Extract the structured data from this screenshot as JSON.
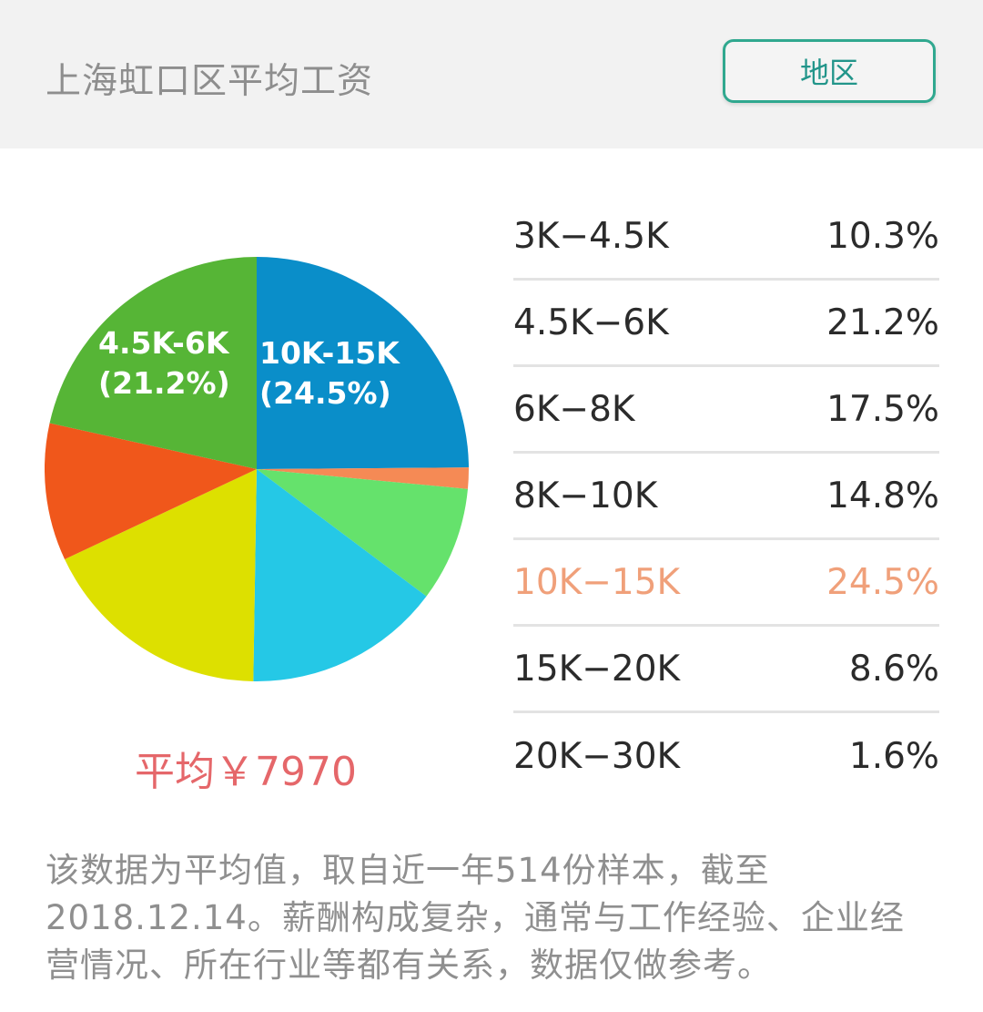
{
  "header": {
    "title": "上海虹口区平均工资",
    "region_button": "地区"
  },
  "pie_labels": [
    {
      "range": "4.5K-6K",
      "pct": "(21.2%)"
    },
    {
      "range": "10K-15K",
      "pct": "(24.5%)"
    }
  ],
  "average": {
    "text": "平均￥7970"
  },
  "legend": [
    {
      "range": "3K−4.5K",
      "pct": "10.3%"
    },
    {
      "range": "4.5K−6K",
      "pct": "21.2%"
    },
    {
      "range": "6K−8K",
      "pct": "17.5%"
    },
    {
      "range": "8K−10K",
      "pct": "14.8%"
    },
    {
      "range": "10K−15K",
      "pct": "24.5%",
      "highlighted": true
    },
    {
      "range": "15K−20K",
      "pct": "8.6%"
    },
    {
      "range": "20K−30K",
      "pct": "1.6%"
    }
  ],
  "note": "该数据为平均值，取自近一年514份样本，截至2018.12.14。薪酬构成复杂，通常与工作经验、企业经营情况、所在行业等都有关系，数据仅做参考。",
  "colors": {
    "highlight": "#f0a07a",
    "average": "#e5676a",
    "button_border": "#30a88f"
  },
  "chart_data": {
    "type": "pie",
    "title": "上海虹口区平均工资",
    "categories": [
      "10K-15K",
      "20K-30K",
      "15K-20K",
      "8K-10K",
      "6K-8K",
      "3K-4.5K",
      "4.5K-6K"
    ],
    "values": [
      24.5,
      1.6,
      8.6,
      14.8,
      17.5,
      10.3,
      21.2
    ],
    "colors": [
      "#0a8ec9",
      "#f58a55",
      "#65e26c",
      "#25c8e6",
      "#dde000",
      "#f0571b",
      "#56b536"
    ],
    "start_angle": "12 o'clock, clockwise",
    "slice_labels": [
      "10K-15K (24.5%)",
      "4.5K-6K (21.2%)"
    ],
    "summary": "平均￥7970",
    "legend_position": "right"
  }
}
